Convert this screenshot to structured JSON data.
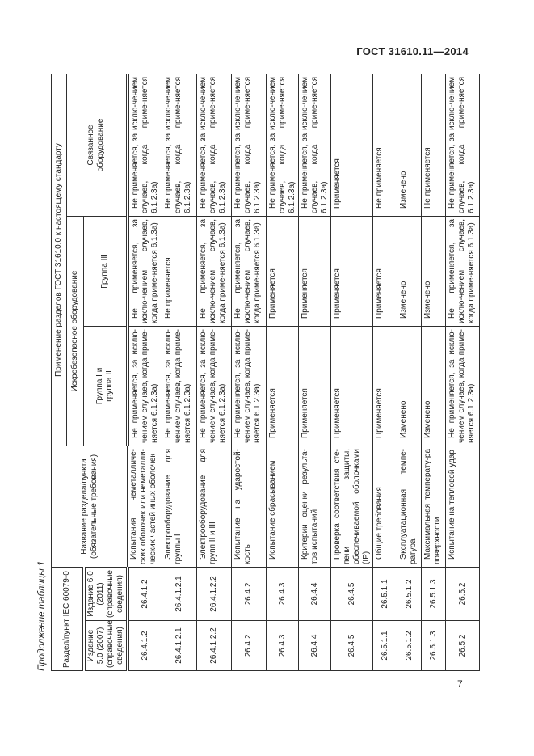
{
  "page": {
    "header_right": "ГОСТ 31610.11—2014",
    "caption": "Продолжение таблицы 1",
    "page_number": "7"
  },
  "table": {
    "header": {
      "razdel_punkt": "Раздел/пункт IEC 60079-0 [2] и [3]",
      "izdanie_5": "Издание 5.0 (2007) (справочные сведения)",
      "izdanie_6": "Издание 6.0 (2011) (справочные сведения)",
      "nazvanie": "Название раздела/пункта (обязательные требования)",
      "primenenie": "Применение разделов ГОСТ 31610.0 к настоящему стандарту",
      "iskrobezopasnoe": "Искробезопасное оборудование",
      "gruppa_1_2": "Группа I и группа II",
      "gruppa_3": "Группа III",
      "svyazannoe": "Связанное оборудование"
    },
    "rows": [
      {
        "ed5": "26.4.1.2",
        "ed6": "26.4.1.2",
        "name": "Испытания неметалличе-ских оболочек или неметалли-ческих частей иных оболочек",
        "g12": "Не применяется, за исклю-чением случаев, когда приме-няется 6.1.2.3а)",
        "g3": "Не применяется, за исклю-чением случаев, когда приме-няется 6.1.3а)",
        "sv": "Не применяется, за исклю-чением случаев, когда приме-няется 6.1.2.3а)"
      },
      {
        "ed5": "26.4.1.2.1",
        "ed6": "26.4.1.2.1",
        "name": "Электрооборудование для группы I",
        "g12": "Не применяется, за исклю-чением случаев, когда приме-няется 6.1.2.3а)",
        "g3": "Не применяется",
        "sv": "Не применяется, за исклю-чением случаев, когда приме-няется 6.1.2.3а)"
      },
      {
        "ed5": "26.4.1.2.2",
        "ed6": "26.4.1.2.2",
        "name": "Электрооборудование для групп II и III",
        "g12": "Не применяется, за исклю-чением случаев, когда приме-няется 6.1.2.3а)",
        "g3": "Не применяется, за исклю-чением случаев, когда приме-няется 6.1.3а)",
        "sv": "Не применяется, за исклю-чением случаев, когда приме-няется 6.1.2.3а)"
      },
      {
        "ed5": "26.4.2",
        "ed6": "26.4.2",
        "name": "Испытание на ударостой-кость",
        "g12": "Не применяется, за исклю-чением случаев, когда приме-няется 6.1.2.3а)",
        "g3": "Не применяется, за исклю-чением случаев, когда приме-няется 6.1.3а)",
        "sv": "Не применяется, за исклю-чением случаев, когда приме-няется 6.1.2.3а)"
      },
      {
        "ed5": "26.4.3",
        "ed6": "26.4.3",
        "name": "Испытание сбрасыванием",
        "g12": "Применяется",
        "g3": "Применяется",
        "sv": "Не применяется, за исклю-чением случаев, когда приме-няется 6.1.2.3а)"
      },
      {
        "ed5": "26.4.4",
        "ed6": "26.4.4",
        "name": "Критерии оценки результа-тов испытаний",
        "g12": "Применяется",
        "g3": "Применяется",
        "sv": "Не применяется, за исклю-чением случаев, когда приме-няется 6.1.2.3а)"
      },
      {
        "ed5": "26.4.5",
        "ed6": "26.4.5",
        "name": "Проверка соответствия сте-пени защиты, обеспечиваемой оболочками (IP)",
        "g12": "Применяется",
        "g3": "Применяется",
        "sv": "Применяется"
      },
      {
        "ed5": "26.5.1.1",
        "ed6": "26.5.1.1",
        "name": "Общие требования",
        "g12": "Применяется",
        "g3": "Применяется",
        "sv": "Не применяется"
      },
      {
        "ed5": "26.5.1.2",
        "ed6": "26.5.1.2",
        "name": "Эксплуатационная темпе-ратура",
        "g12": "Изменено",
        "g3": "Изменено",
        "sv": "Изменено"
      },
      {
        "ed5": "26.5.1.3",
        "ed6": "26.5.1.3",
        "name": "Максимальная температу-ра поверхности",
        "g12": "Изменено",
        "g3": "Изменено",
        "sv": "Не применяется"
      },
      {
        "ed5": "26.5.2",
        "ed6": "26.5.2",
        "name": "Испытание на тепловой удар",
        "g12": "Не применяется, за исклю-чением случаев, когда приме-няется 6.1.2.3а)",
        "g3": "Не применяется, за исклю-чением случаев, когда приме-няется 6.1.3а)",
        "sv": "Не применяется, за исклю-чением случаев, когда приме-няется 6.1.2.3а)"
      }
    ]
  }
}
